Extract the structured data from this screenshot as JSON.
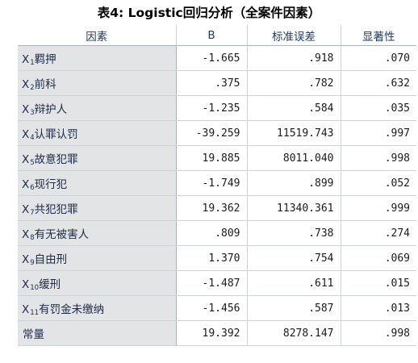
{
  "title": "表4: Logistic回归分析（全案件因素）",
  "headers": [
    "因素",
    "B",
    "标准误差",
    "显著性"
  ],
  "rows": [
    {
      "prefix": "X",
      "sub": "1",
      "name": "羁押",
      "b": "-1.665",
      "se": ".918",
      "sig": ".070"
    },
    {
      "prefix": "X",
      "sub": "2",
      "name": "前科",
      "b": ".375",
      "se": ".782",
      "sig": ".632"
    },
    {
      "prefix": "X",
      "sub": "3",
      "name": "辩护人",
      "b": "-1.235",
      "se": ".584",
      "sig": ".035"
    },
    {
      "prefix": "X",
      "sub": "4",
      "name": "认罪认罚",
      "b": "-39.259",
      "se": "11519.743",
      "sig": ".997"
    },
    {
      "prefix": "X",
      "sub": "5",
      "name": "故意犯罪",
      "b": "19.885",
      "se": "8011.040",
      "sig": ".998"
    },
    {
      "prefix": "X",
      "sub": "6",
      "name": "现行犯",
      "b": "-1.749",
      "se": ".899",
      "sig": ".052"
    },
    {
      "prefix": "X",
      "sub": "7",
      "name": "共犯犯罪",
      "b": "19.362",
      "se": "11340.361",
      "sig": ".999"
    },
    {
      "prefix": "X",
      "sub": "8",
      "name": "有无被害人",
      "b": ".809",
      "se": ".738",
      "sig": ".274"
    },
    {
      "prefix": "X",
      "sub": "9",
      "name": "自由刑",
      "b": "1.370",
      "se": ".754",
      "sig": ".069"
    },
    {
      "prefix": "X",
      "sub": "10",
      "name": "缓刑",
      "b": "-1.487",
      "se": ".611",
      "sig": ".015"
    },
    {
      "prefix": "X",
      "sub": "11",
      "name": "有罚金未缴纳",
      "b": "-1.456",
      "se": ".587",
      "sig": ".013"
    },
    {
      "prefix": "",
      "sub": "",
      "name": "常量",
      "b": "19.392",
      "se": "8278.147",
      "sig": ".998"
    }
  ]
}
